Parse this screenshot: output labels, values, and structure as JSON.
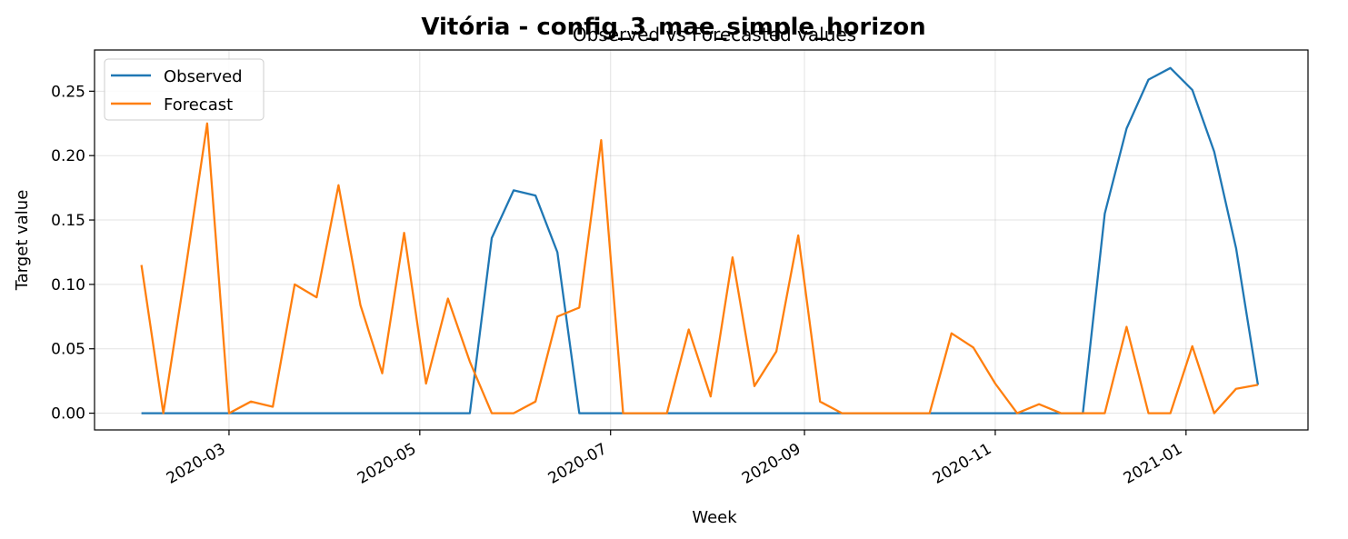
{
  "figure": {
    "suptitle": "Vitória - config_3_mae_simple_horizon"
  },
  "chart_data": {
    "type": "line",
    "title": "Observed vs Forecasted values",
    "xlabel": "Week",
    "ylabel": "Target value",
    "grid": true,
    "legend_position": "top-left",
    "x_tick_labels": [
      "2020-03",
      "2020-05",
      "2020-07",
      "2020-09",
      "2020-11",
      "2021-01"
    ],
    "x_tick_dates": [
      "2020-03-01",
      "2020-05-01",
      "2020-07-01",
      "2020-09-01",
      "2020-11-01",
      "2021-01-01"
    ],
    "xlim": [
      "2020-01-18",
      "2021-02-09"
    ],
    "y_tick_labels": [
      "0.00",
      "0.05",
      "0.10",
      "0.15",
      "0.20",
      "0.25"
    ],
    "y_ticks": [
      0,
      0.05,
      0.1,
      0.15,
      0.2,
      0.25
    ],
    "ylim": [
      -0.013,
      0.282
    ],
    "x": [
      "2020-02-02",
      "2020-02-09",
      "2020-02-16",
      "2020-02-23",
      "2020-03-01",
      "2020-03-08",
      "2020-03-15",
      "2020-03-22",
      "2020-03-29",
      "2020-04-05",
      "2020-04-12",
      "2020-04-19",
      "2020-04-26",
      "2020-05-03",
      "2020-05-10",
      "2020-05-17",
      "2020-05-24",
      "2020-05-31",
      "2020-06-07",
      "2020-06-14",
      "2020-06-21",
      "2020-06-28",
      "2020-07-05",
      "2020-07-12",
      "2020-07-19",
      "2020-07-26",
      "2020-08-02",
      "2020-08-09",
      "2020-08-16",
      "2020-08-23",
      "2020-08-30",
      "2020-09-06",
      "2020-09-13",
      "2020-09-20",
      "2020-09-27",
      "2020-10-04",
      "2020-10-11",
      "2020-10-18",
      "2020-10-25",
      "2020-11-01",
      "2020-11-08",
      "2020-11-15",
      "2020-11-22",
      "2020-11-29",
      "2020-12-06",
      "2020-12-13",
      "2020-12-20",
      "2020-12-27",
      "2021-01-03",
      "2021-01-10",
      "2021-01-17",
      "2021-01-24"
    ],
    "series": [
      {
        "name": "Observed",
        "color": "#1f77b4",
        "values": [
          0,
          0,
          0,
          0,
          0,
          0,
          0,
          0,
          0,
          0,
          0,
          0,
          0,
          0,
          0,
          0,
          0.136,
          0.173,
          0.169,
          0.125,
          0,
          0,
          0,
          0,
          0,
          0,
          0,
          0,
          0,
          0,
          0,
          0,
          0,
          0,
          0,
          0,
          0,
          0,
          0,
          0,
          0,
          0,
          0,
          0,
          0.155,
          0.221,
          0.259,
          0.268,
          0.251,
          0.203,
          0.128,
          0.022
        ]
      },
      {
        "name": "Forecast",
        "color": "#ff7f0e",
        "values": [
          0.115,
          0,
          0.11,
          0.225,
          0,
          0.009,
          0.005,
          0.1,
          0.09,
          0.177,
          0.084,
          0.031,
          0.14,
          0.023,
          0.089,
          0.04,
          0,
          0,
          0.009,
          0.075,
          0.082,
          0.212,
          0,
          0,
          0,
          0.065,
          0.013,
          0.121,
          0.021,
          0.048,
          0.138,
          0.009,
          0,
          0,
          0,
          0,
          0,
          0.062,
          0.051,
          0.023,
          0,
          0.007,
          0,
          0,
          0,
          0.067,
          0,
          0,
          0.052,
          0,
          0.019,
          0.022
        ]
      }
    ]
  }
}
